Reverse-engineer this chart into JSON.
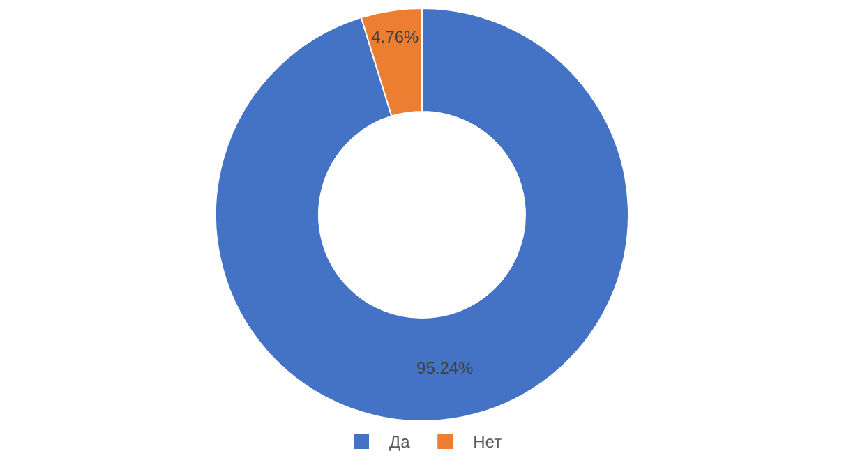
{
  "chart_data": {
    "type": "donut",
    "categories": [
      "Да",
      "Нет"
    ],
    "values": [
      95.24,
      4.76
    ],
    "colors": [
      "#4472c4",
      "#ed7d31"
    ],
    "value_labels": [
      "95.24%",
      "4.76%"
    ],
    "legend": "bottom"
  }
}
